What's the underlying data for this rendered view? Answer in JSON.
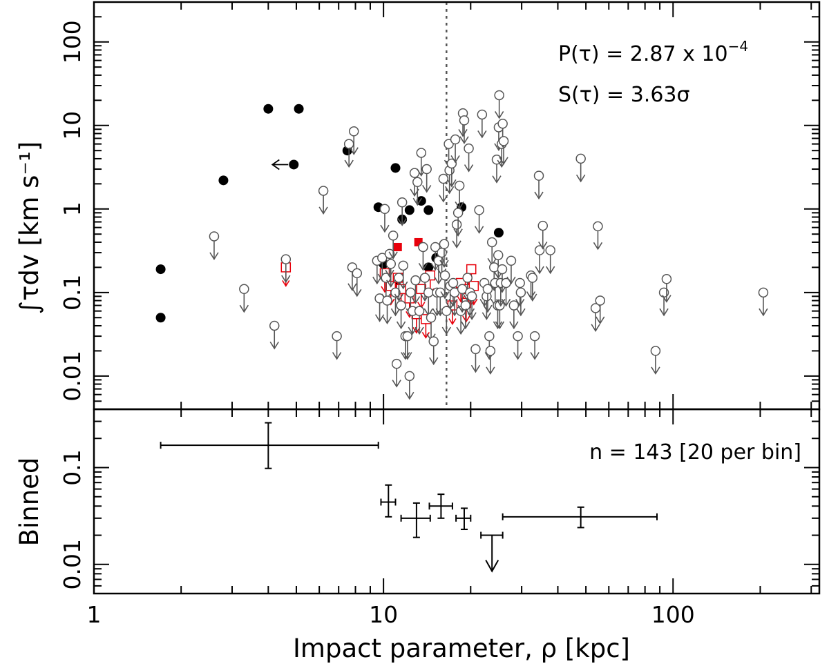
{
  "chart_data": [
    {
      "panel": "top",
      "type": "scatter",
      "xscale": "log",
      "yscale": "log",
      "xlim": [
        1,
        320
      ],
      "ylim": [
        0.004,
        300
      ],
      "ylabel": "∫τdv [km s⁻¹]",
      "yticks": [
        {
          "v": 0.01,
          "label": "0.01"
        },
        {
          "v": 0.1,
          "label": "0.1"
        },
        {
          "v": 1,
          "label": "1"
        },
        {
          "v": 10,
          "label": "10"
        },
        {
          "v": 100,
          "label": "100"
        }
      ],
      "vline": 16.5,
      "annotations": [
        "P(τ) = 2.87 x 10",
        "−4",
        "S(τ) = 3.63σ"
      ],
      "series": [
        {
          "name": "Detections",
          "marker": "filled-circle",
          "color": "#000000",
          "points": [
            [
              1.7,
              0.19
            ],
            [
              1.7,
              0.05
            ],
            [
              2.8,
              2.2
            ],
            [
              4.0,
              15.8
            ],
            [
              5.1,
              15.8
            ],
            [
              7.5,
              5.0
            ],
            [
              9.6,
              1.05
            ],
            [
              10.0,
              0.22
            ],
            [
              11.0,
              3.1
            ],
            [
              11.0,
              0.12
            ],
            [
              11.6,
              0.75
            ],
            [
              12.3,
              0.97
            ],
            [
              13.5,
              1.25
            ],
            [
              14.3,
              0.97
            ],
            [
              14.3,
              0.2
            ],
            [
              15.2,
              0.26
            ],
            [
              18.6,
              1.05
            ],
            [
              25.0,
              0.52
            ]
          ]
        },
        {
          "name": "Detection (lower limit on ρ)",
          "marker": "filled-circle-left-arrow",
          "color": "#000000",
          "points": [
            [
              4.9,
              3.4
            ]
          ]
        },
        {
          "name": "Detections (red)",
          "marker": "filled-square",
          "color": "#e8000b",
          "points": [
            [
              11.2,
              0.35
            ],
            [
              13.2,
              0.4
            ]
          ]
        },
        {
          "name": "Upper limits (red)",
          "marker": "open-square-down-arrow",
          "color": "#e8000b",
          "points": [
            [
              4.6,
              0.2
            ],
            [
              10.1,
              0.17
            ],
            [
              10.6,
              0.12
            ],
            [
              11.2,
              0.15
            ],
            [
              11.5,
              0.11
            ],
            [
              12.3,
              0.085
            ],
            [
              13.0,
              0.055
            ],
            [
              13.5,
              0.11
            ],
            [
              14.0,
              0.048
            ],
            [
              14.5,
              0.16
            ],
            [
              17.3,
              0.07
            ],
            [
              18.5,
              0.13
            ],
            [
              19.3,
              0.075
            ],
            [
              19.7,
              0.11
            ],
            [
              20.1,
              0.19
            ],
            [
              20.5,
              0.12
            ]
          ]
        },
        {
          "name": "Upper limits",
          "marker": "open-circle-down-arrow",
          "color": "#555555",
          "points": [
            [
              2.6,
              0.47
            ],
            [
              3.3,
              0.11
            ],
            [
              4.2,
              0.04
            ],
            [
              4.6,
              0.25
            ],
            [
              6.2,
              1.65
            ],
            [
              6.9,
              0.03
            ],
            [
              7.6,
              6.0
            ],
            [
              7.8,
              0.2
            ],
            [
              7.9,
              8.5
            ],
            [
              8.1,
              0.17
            ],
            [
              9.5,
              0.24
            ],
            [
              9.7,
              0.085
            ],
            [
              9.9,
              0.26
            ],
            [
              10.1,
              1.0
            ],
            [
              10.2,
              0.15
            ],
            [
              10.3,
              0.08
            ],
            [
              10.5,
              0.29
            ],
            [
              10.6,
              0.22
            ],
            [
              10.8,
              0.48
            ],
            [
              11.0,
              0.1
            ],
            [
              11.1,
              0.014
            ],
            [
              11.3,
              0.15
            ],
            [
              11.5,
              0.07
            ],
            [
              11.6,
              1.2
            ],
            [
              11.7,
              0.21
            ],
            [
              11.9,
              0.03
            ],
            [
              12.1,
              0.03
            ],
            [
              12.3,
              0.01
            ],
            [
              12.4,
              0.1
            ],
            [
              12.6,
              0.06
            ],
            [
              12.8,
              2.7
            ],
            [
              12.9,
              0.14
            ],
            [
              13.1,
              2.1
            ],
            [
              13.3,
              0.06
            ],
            [
              13.5,
              4.7
            ],
            [
              13.7,
              0.35
            ],
            [
              13.9,
              0.15
            ],
            [
              14.1,
              3.0
            ],
            [
              14.3,
              0.1
            ],
            [
              14.6,
              0.05
            ],
            [
              14.9,
              0.026
            ],
            [
              15.1,
              0.35
            ],
            [
              15.3,
              0.1
            ],
            [
              15.5,
              0.24
            ],
            [
              15.7,
              0.1
            ],
            [
              15.9,
              0.3
            ],
            [
              16.1,
              2.3
            ],
            [
              16.2,
              0.38
            ],
            [
              16.3,
              0.16
            ],
            [
              16.5,
              0.06
            ],
            [
              16.8,
              6.0
            ],
            [
              16.9,
              2.9
            ],
            [
              17.0,
              0.12
            ],
            [
              17.2,
              3.5
            ],
            [
              17.4,
              0.13
            ],
            [
              17.6,
              0.1
            ],
            [
              17.7,
              6.8
            ],
            [
              17.9,
              0.65
            ],
            [
              18.1,
              0.9
            ],
            [
              18.3,
              1.9
            ],
            [
              18.5,
              0.06
            ],
            [
              18.7,
              0.11
            ],
            [
              18.8,
              14.0
            ],
            [
              19.0,
              11.5
            ],
            [
              19.2,
              0.07
            ],
            [
              19.5,
              0.15
            ],
            [
              19.7,
              5.3
            ],
            [
              19.9,
              0.1
            ],
            [
              20.2,
              0.09
            ],
            [
              20.8,
              0.021
            ],
            [
              21.4,
              0.97
            ],
            [
              21.9,
              13.5
            ],
            [
              22.3,
              0.13
            ],
            [
              22.7,
              0.09
            ],
            [
              22.9,
              0.11
            ],
            [
              23.2,
              0.03
            ],
            [
              23.4,
              0.02
            ],
            [
              23.7,
              0.4
            ],
            [
              24.1,
              0.2
            ],
            [
              24.3,
              0.13
            ],
            [
              24.6,
              3.9
            ],
            [
              24.8,
              0.07
            ],
            [
              24.9,
              0.28
            ],
            [
              25.0,
              9.5
            ],
            [
              25.1,
              23.0
            ],
            [
              25.2,
              0.07
            ],
            [
              25.4,
              0.13
            ],
            [
              25.6,
              6.0
            ],
            [
              25.7,
              0.19
            ],
            [
              25.8,
              10.5
            ],
            [
              26.0,
              6.5
            ],
            [
              26.5,
              0.13
            ],
            [
              27.6,
              0.24
            ],
            [
              28.2,
              0.07
            ],
            [
              29.1,
              0.03
            ],
            [
              29.6,
              0.13
            ],
            [
              29.8,
              0.1
            ],
            [
              32.3,
              0.16
            ],
            [
              32.7,
              0.15
            ],
            [
              33.3,
              0.03
            ],
            [
              34.4,
              2.5
            ],
            [
              34.6,
              0.32
            ],
            [
              35.5,
              0.63
            ],
            [
              37.7,
              0.32
            ],
            [
              48.0,
              4.0
            ],
            [
              54.0,
              0.065
            ],
            [
              55.0,
              0.62
            ],
            [
              56.0,
              0.08
            ],
            [
              87.0,
              0.02
            ],
            [
              93.0,
              0.1
            ],
            [
              95.0,
              0.145
            ],
            [
              205.0,
              0.1
            ]
          ]
        }
      ]
    },
    {
      "panel": "bottom",
      "type": "errorbar",
      "xscale": "log",
      "yscale": "log",
      "xlim": [
        1,
        320
      ],
      "ylim": [
        0.005,
        0.4
      ],
      "ylabel": "Binned",
      "xlabel": "Impact parameter, ρ [kpc]",
      "xticks": [
        {
          "v": 1,
          "label": "1"
        },
        {
          "v": 10,
          "label": "10"
        },
        {
          "v": 100,
          "label": "100"
        }
      ],
      "yticks": [
        {
          "v": 0.01,
          "label": "0.01"
        },
        {
          "v": 0.1,
          "label": "0.1"
        }
      ],
      "annotation": "n = 143 [20 per bin]",
      "bins": [
        {
          "x": 4.0,
          "xlo": 1.7,
          "xhi": 9.6,
          "y": 0.17,
          "ylo": 0.098,
          "yhi": 0.29
        },
        {
          "x": 10.4,
          "xlo": 9.8,
          "xhi": 11.0,
          "y": 0.044,
          "ylo": 0.031,
          "yhi": 0.066
        },
        {
          "x": 13.0,
          "xlo": 11.5,
          "xhi": 14.5,
          "y": 0.03,
          "ylo": 0.019,
          "yhi": 0.043
        },
        {
          "x": 15.8,
          "xlo": 14.4,
          "xhi": 17.3,
          "y": 0.04,
          "ylo": 0.03,
          "yhi": 0.053
        },
        {
          "x": 19.0,
          "xlo": 17.8,
          "xhi": 20.0,
          "y": 0.03,
          "ylo": 0.023,
          "yhi": 0.038
        },
        {
          "x": 48.0,
          "xlo": 25.8,
          "xhi": 88.0,
          "y": 0.031,
          "ylo": 0.024,
          "yhi": 0.039
        }
      ],
      "upper_limit_bins": [
        {
          "x": 23.7,
          "xlo": 21.7,
          "xhi": 25.8,
          "y": 0.02,
          "arrow_to": 0.0085
        }
      ]
    }
  ]
}
